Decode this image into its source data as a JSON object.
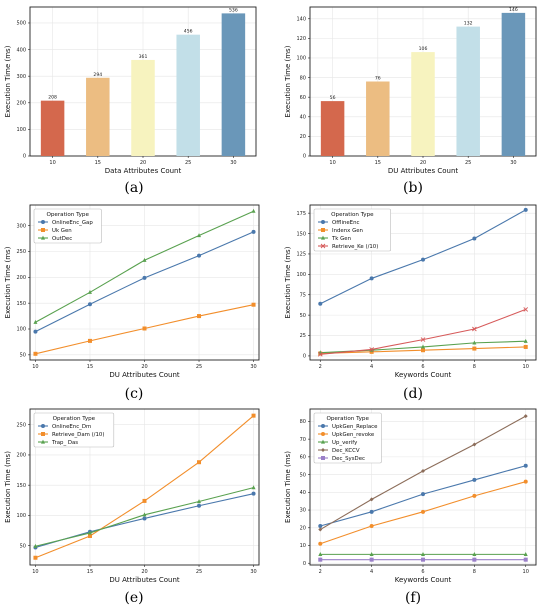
{
  "charts": [
    {
      "id": "a",
      "type": "bar",
      "panel_label": "(a)",
      "categories": [
        "10",
        "15",
        "20",
        "25",
        "30"
      ],
      "values": [
        208,
        294,
        361,
        456,
        536
      ],
      "value_labels": [
        "208",
        "294",
        "361",
        "456",
        "536"
      ],
      "colors": [
        "#d4684d",
        "#ecbd82",
        "#f7f3bf",
        "#c2dfe8",
        "#6a97b9"
      ],
      "xlabel": "Data Attributes Count",
      "ylabel": "Execution Time (ms)",
      "ylim": [
        0,
        560
      ],
      "yticks": [
        0,
        100,
        200,
        300,
        400,
        500
      ],
      "grid": true
    },
    {
      "id": "b",
      "type": "bar",
      "panel_label": "(b)",
      "categories": [
        "10",
        "15",
        "20",
        "25",
        "30"
      ],
      "values": [
        56,
        76,
        106,
        132,
        146
      ],
      "value_labels": [
        "56",
        "76",
        "106",
        "132",
        "146"
      ],
      "colors": [
        "#d4684d",
        "#ecbd82",
        "#f7f3bf",
        "#c2dfe8",
        "#6a97b9"
      ],
      "xlabel": "DU Attributes Count",
      "ylabel": "Execution Time (ms)",
      "ylim": [
        0,
        152
      ],
      "yticks": [
        0,
        20,
        40,
        60,
        80,
        100,
        120,
        140
      ],
      "grid": true
    },
    {
      "id": "c",
      "type": "line",
      "panel_label": "(c)",
      "x": [
        10,
        15,
        20,
        25,
        30
      ],
      "xticks": [
        10,
        15,
        20,
        25,
        30
      ],
      "series": [
        {
          "name": "OnlineEnc_Gap",
          "values": [
            95,
            148,
            199,
            242,
            288
          ],
          "color": "#4a78ac",
          "marker": "circle"
        },
        {
          "name": "Uk Gen",
          "values": [
            52,
            77,
            101,
            125,
            147
          ],
          "color": "#f28e2b",
          "marker": "square"
        },
        {
          "name": "OutDec",
          "values": [
            113,
            171,
            233,
            281,
            328
          ],
          "color": "#59a14f",
          "marker": "triangle"
        }
      ],
      "legend_title": "Operation Type",
      "legend_position": "top-left",
      "xlabel": "DU Attributes Count",
      "ylabel": "Execution Time (ms)",
      "xlim": [
        9.5,
        30.5
      ],
      "ylim": [
        40,
        340
      ],
      "yticks": [
        50,
        100,
        150,
        200,
        250,
        300
      ],
      "grid": true
    },
    {
      "id": "d",
      "type": "line",
      "panel_label": "(d)",
      "x": [
        2,
        4,
        6,
        8,
        10
      ],
      "xticks": [
        2,
        4,
        6,
        8,
        10
      ],
      "series": [
        {
          "name": "OfflineEnc",
          "values": [
            64,
            95,
            118,
            144,
            179
          ],
          "color": "#4a78ac",
          "marker": "circle"
        },
        {
          "name": "Indenx Gen",
          "values": [
            3,
            5,
            7,
            9,
            11
          ],
          "color": "#f28e2b",
          "marker": "square"
        },
        {
          "name": "Tk Gen",
          "values": [
            4,
            7,
            11,
            16,
            18
          ],
          "color": "#59a14f",
          "marker": "triangle"
        },
        {
          "name": "Retrieve_Ke (/10)",
          "values": [
            2,
            8,
            20,
            33,
            57
          ],
          "color": "#d65a5a",
          "marker": "x"
        }
      ],
      "legend_title": "Operation Type",
      "legend_position": "top-left",
      "xlabel": "Keywords Count",
      "ylabel": "Execution Time (ms)",
      "xlim": [
        1.6,
        10.4
      ],
      "ylim": [
        -5,
        185
      ],
      "yticks": [
        0,
        25,
        50,
        75,
        100,
        125,
        150,
        175
      ],
      "grid": true
    },
    {
      "id": "e",
      "type": "line",
      "panel_label": "(e)",
      "x": [
        10,
        15,
        20,
        25,
        30
      ],
      "xticks": [
        10,
        15,
        20,
        25,
        30
      ],
      "series": [
        {
          "name": "OnlineEnc_Dm",
          "values": [
            47,
            73,
            95,
            116,
            136
          ],
          "color": "#4a78ac",
          "marker": "circle"
        },
        {
          "name": "Retrieve_Dam (/10)",
          "values": [
            30,
            66,
            124,
            188,
            265
          ],
          "color": "#f28e2b",
          "marker": "square"
        },
        {
          "name": "Trap_ Das",
          "values": [
            49,
            71,
            101,
            123,
            146
          ],
          "color": "#59a14f",
          "marker": "triangle"
        }
      ],
      "legend_title": "Operation Type",
      "legend_position": "top-left",
      "xlabel": "DU Attributes Count",
      "ylabel": "Execution Time (ms)",
      "xlim": [
        9.5,
        30.5
      ],
      "ylim": [
        18,
        276
      ],
      "yticks": [
        50,
        100,
        150,
        200,
        250
      ],
      "grid": true
    },
    {
      "id": "f",
      "type": "line",
      "panel_label": "(f)",
      "x": [
        2,
        4,
        6,
        8,
        10
      ],
      "xticks": [
        2,
        4,
        6,
        8,
        10
      ],
      "series": [
        {
          "name": "UpkGen_Replace",
          "values": [
            21,
            29,
            39,
            47,
            55
          ],
          "color": "#4a78ac",
          "marker": "circle"
        },
        {
          "name": "UpkGen_revoke",
          "values": [
            11,
            21,
            29,
            38,
            46
          ],
          "color": "#f28e2b",
          "marker": "circle"
        },
        {
          "name": "Up_verify",
          "values": [
            5,
            5,
            5,
            5,
            5
          ],
          "color": "#59a14f",
          "marker": "triangle"
        },
        {
          "name": "Dec_KCCV",
          "values": [
            19,
            36,
            52,
            67,
            83
          ],
          "color": "#8c6d5a",
          "marker": "diamond"
        },
        {
          "name": "Dec_SysDec",
          "values": [
            2,
            2,
            2,
            2,
            2
          ],
          "color": "#9a7fc8",
          "marker": "square"
        }
      ],
      "legend_title": "Operation Type",
      "legend_position": "top-left",
      "xlabel": "Keywords Count",
      "ylabel": "Execution Time (ms)",
      "xlim": [
        1.6,
        10.4
      ],
      "ylim": [
        -1,
        87
      ],
      "yticks": [
        0,
        10,
        20,
        30,
        40,
        50,
        60,
        70,
        80
      ],
      "grid": true
    }
  ]
}
